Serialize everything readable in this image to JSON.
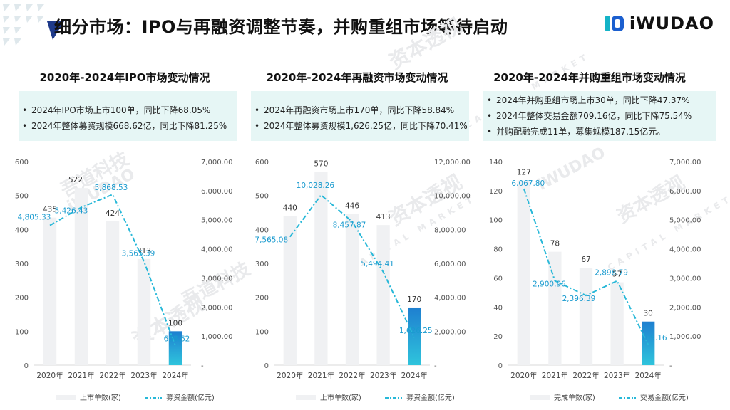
{
  "header": {
    "title": "细分市场：IPO与再融资调整节奏，并购重组市场等待启动",
    "logo_text": "iWUDAO"
  },
  "watermark": {
    "text_cn": "吾道科技",
    "text_en": "iWUDAO",
    "text_cn2": "资本透视",
    "text_en2": "CAPITAL MARKET"
  },
  "panels": [
    {
      "title": "2020年-2024年IPO市场变动情况",
      "bullets": [
        "2024年IPO市场上市100单，同比下降68.05%",
        "2024年整体募资规模668.62亿，同比下降81.25%"
      ]
    },
    {
      "title": "2020年-2024年再融资市场变动情况",
      "bullets": [
        "2024年再融资市场上市170单，同比下降58.84%",
        "2024年整体募资规模1,626.25亿，同比下降70.41%"
      ]
    },
    {
      "title": "2020年-2024年并购重组市场变动情况",
      "bullets": [
        "2024年并购重组市场上市30单，同比下降47.37%",
        "2024年整体交易金额709.16亿，同比下降75.54%",
        "并购配融完成11单，募集规模187.15亿元。"
      ]
    }
  ],
  "colors": {
    "bar": "#f0f1f3",
    "bar_highlight": "#1e7fd0",
    "line": "#28b8d8",
    "line_label": "#1a9bcf",
    "box": "#e6f6f5"
  },
  "chart_data": [
    {
      "type": "bar+line",
      "categories": [
        "2020年",
        "2021年",
        "2022年",
        "2023年",
        "2024年"
      ],
      "series": [
        {
          "name": "上市单数(家)",
          "type": "bar",
          "axis": "left",
          "values": [
            435,
            522,
            424,
            313,
            100
          ]
        },
        {
          "name": "募资金额(亿元)",
          "type": "line",
          "axis": "right",
          "values": [
            4805.33,
            5426.43,
            5868.53,
            3565.39,
            668.62
          ]
        }
      ],
      "bar_labels": [
        "435",
        "522",
        "424",
        "313",
        "100"
      ],
      "line_labels": [
        "4,805.33",
        "5,426.43",
        "5,868.53",
        "3,565.39",
        "668.62"
      ],
      "left_axis": {
        "min": 0,
        "max": 600,
        "ticks": [
          "0",
          "100",
          "200",
          "300",
          "400",
          "500",
          "600"
        ]
      },
      "right_axis": {
        "min": 0,
        "max": 7000,
        "ticks": [
          "-",
          "1,000.00",
          "2,000.00",
          "3,000.00",
          "4,000.00",
          "5,000.00",
          "6,000.00",
          "7,000.00"
        ]
      },
      "legend": "bottom",
      "grid": false
    },
    {
      "type": "bar+line",
      "categories": [
        "2020年",
        "2021年",
        "2022年",
        "2023年",
        "2024年"
      ],
      "series": [
        {
          "name": "上市单数(家)",
          "type": "bar",
          "axis": "left",
          "values": [
            440,
            570,
            446,
            413,
            170
          ]
        },
        {
          "name": "募资金额(亿元)",
          "type": "line",
          "axis": "right",
          "values": [
            7565.08,
            10028.26,
            8457.87,
            5494.41,
            1626.25
          ]
        }
      ],
      "bar_labels": [
        "440",
        "570",
        "446",
        "413",
        "170"
      ],
      "line_labels": [
        "7,565.08",
        "10,028.26",
        "8,457.87",
        "5,494.41",
        "1,626.25"
      ],
      "left_axis": {
        "min": 0,
        "max": 600,
        "ticks": [
          "0",
          "100",
          "200",
          "300",
          "400",
          "500",
          "600"
        ]
      },
      "right_axis": {
        "min": 0,
        "max": 12000,
        "ticks": [
          "-",
          "2,000.00",
          "4,000.00",
          "6,000.00",
          "8,000.00",
          "10,000.00",
          "12,000.00"
        ]
      },
      "legend": "bottom",
      "grid": false
    },
    {
      "type": "bar+line",
      "categories": [
        "2020年",
        "2021年",
        "2022年",
        "2023年",
        "2024年"
      ],
      "series": [
        {
          "name": "完成单数(家)",
          "type": "bar",
          "axis": "left",
          "values": [
            127,
            78,
            67,
            57,
            30
          ]
        },
        {
          "name": "交易金额(亿元)",
          "type": "line",
          "axis": "right",
          "values": [
            6067.8,
            2900.96,
            2396.39,
            2898.79,
            709.16
          ]
        }
      ],
      "bar_labels": [
        "127",
        "78",
        "67",
        "57",
        "30"
      ],
      "line_labels": [
        "6,067.80",
        "2,900.96",
        "2,396.39",
        "2,898.79",
        "709.16"
      ],
      "left_axis": {
        "min": 0,
        "max": 140,
        "ticks": [
          "0",
          "20",
          "40",
          "60",
          "80",
          "100",
          "120",
          "140"
        ]
      },
      "right_axis": {
        "min": 0,
        "max": 7000,
        "ticks": [
          "-",
          "1,000.00",
          "2,000.00",
          "3,000.00",
          "4,000.00",
          "5,000.00",
          "6,000.00",
          "7,000.00"
        ]
      },
      "legend": "bottom",
      "grid": false
    }
  ]
}
